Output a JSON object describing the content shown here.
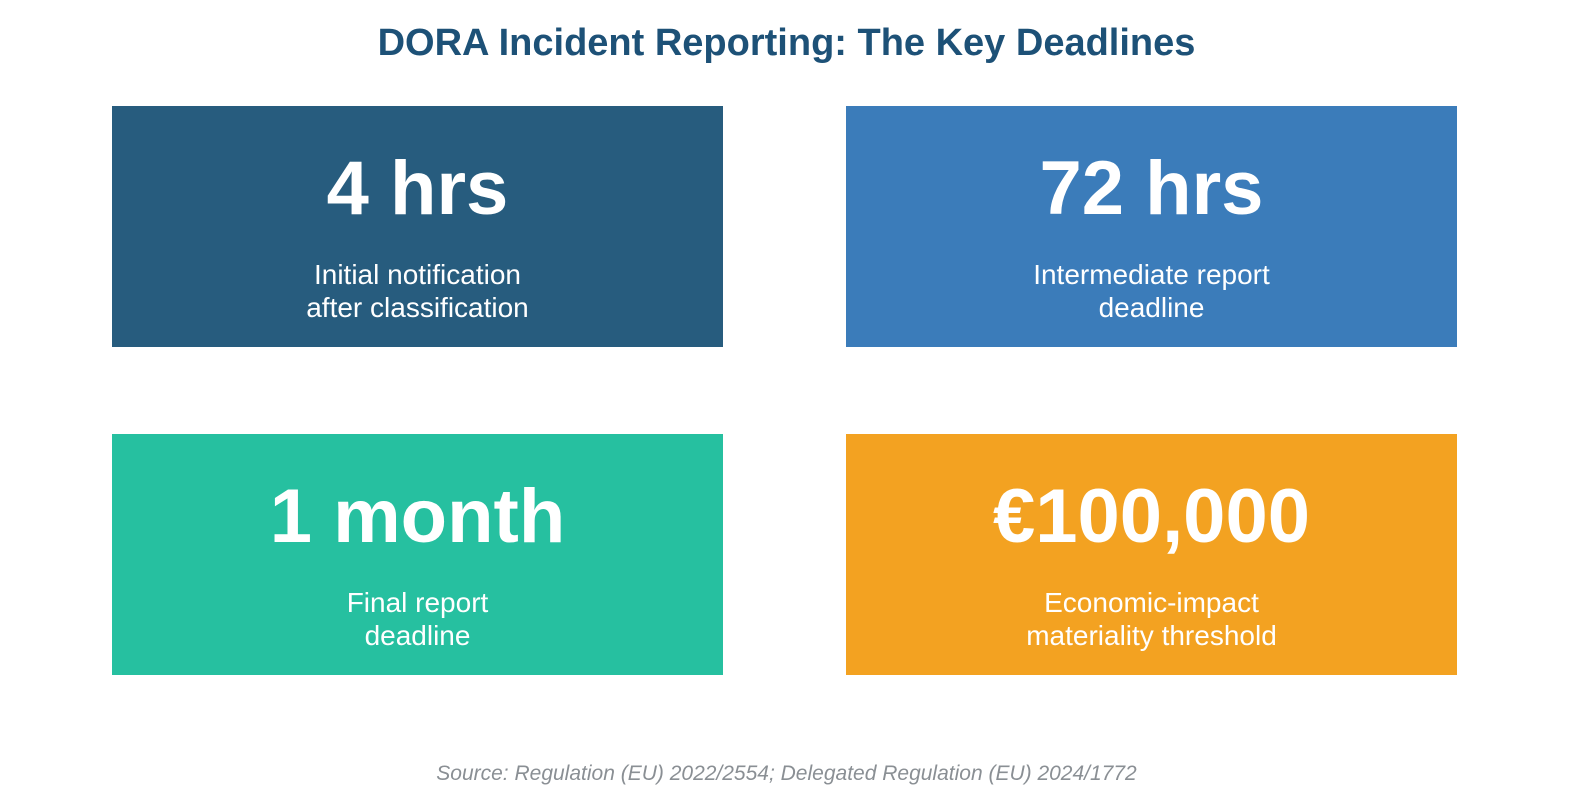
{
  "header": {
    "title": "DORA Incident Reporting: The Key Deadlines"
  },
  "cards": [
    {
      "value": "4 hrs",
      "label_lines": [
        "Initial notification",
        "after classification"
      ]
    },
    {
      "value": "72 hrs",
      "label_lines": [
        "Intermediate report",
        "deadline"
      ]
    },
    {
      "value": "1 month",
      "label_lines": [
        "Final report",
        "deadline"
      ]
    },
    {
      "value": "€100,000",
      "label_lines": [
        "Economic-impact",
        "materiality threshold"
      ]
    }
  ],
  "footer": {
    "source": "Source: Regulation (EU) 2022/2554; Delegated Regulation (EU) 2024/1772"
  }
}
